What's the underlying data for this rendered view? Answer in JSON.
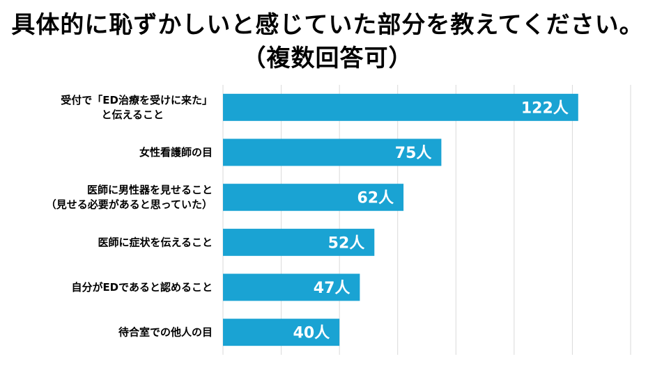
{
  "title": "具体的に恥ずかしいと感じていた部分を教えてください。",
  "subtitle": "（複数回答可）",
  "colors": {
    "bar": "#1aa3d3",
    "grid": "#d9d9d9"
  },
  "chart_data": {
    "type": "bar",
    "orientation": "horizontal",
    "unit": "人",
    "categories": [
      [
        "受付で「ED治療を受けに来た」",
        "と伝えること"
      ],
      [
        "女性看護師の目"
      ],
      [
        "医師に男性器を見せること",
        "（見せる必要があると思っていた）"
      ],
      [
        "医師に症状を伝えること"
      ],
      [
        "自分がEDであると認めること"
      ],
      [
        "待合室での他人の目"
      ]
    ],
    "values": [
      122,
      75,
      62,
      52,
      47,
      40
    ],
    "value_labels": [
      "122人",
      "75人",
      "62人",
      "52人",
      "47人",
      "40人"
    ],
    "xlim": [
      0,
      140
    ],
    "grid": true,
    "legend": false
  }
}
